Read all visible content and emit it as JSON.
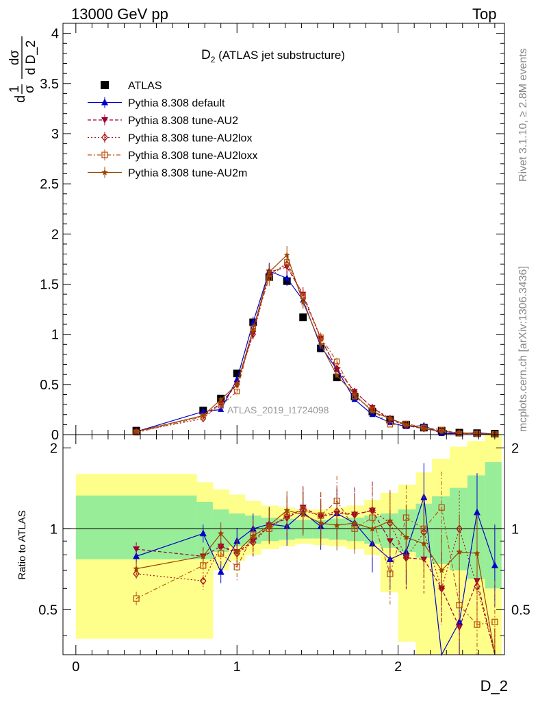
{
  "header": {
    "left": "13000 GeV pp",
    "right": "Top"
  },
  "side_labels": {
    "rivet": "Rivet 3.1.10, ≥ 2.8M events",
    "mcplots": "mcplots.cern.ch [arXiv:1306.3436]"
  },
  "chart_data": [
    {
      "type": "line",
      "title": "D₂ (ATLAS jet substructure)",
      "title_main": "D",
      "title_sub": "2",
      "title_rest": " (ATLAS jet substructure)",
      "xlabel": "D_2",
      "ylabel": "dσ / d D_2  × 1/σ",
      "ylabel_parts": {
        "frac1_num": "1",
        "frac1_den": "σ",
        "frac2_num": "dσ",
        "frac2_den": "d D_2",
        "prefix": "d"
      },
      "xlim": [
        -0.08,
        2.66
      ],
      "ylim": [
        0,
        4.1
      ],
      "x_ticks": [
        "0",
        "1",
        "2"
      ],
      "y_ticks": [
        "0",
        "0.5",
        "1",
        "1.5",
        "2",
        "2.5",
        "3",
        "3.5",
        "4"
      ],
      "watermark": "ATLAS_2019_I1724098",
      "legend_position": "top-left",
      "x": [
        0.375,
        0.79,
        0.9,
        1.0,
        1.1,
        1.2,
        1.31,
        1.41,
        1.52,
        1.62,
        1.73,
        1.84,
        1.95,
        2.05,
        2.16,
        2.27,
        2.38,
        2.49,
        2.6
      ],
      "series": [
        {
          "name": "ATLAS",
          "color": "#000000",
          "marker": "square",
          "values": [
            0.04,
            0.24,
            0.36,
            0.61,
            1.12,
            1.57,
            1.53,
            1.17,
            0.86,
            0.57,
            0.38,
            0.23,
            0.15,
            0.1,
            0.07,
            0.04,
            0.02,
            0.015,
            0.01
          ]
        },
        {
          "name": "Pythia 8.308 default",
          "color": "#0000cc",
          "marker": "triangle-up",
          "values": [
            0.03,
            0.23,
            0.25,
            0.55,
            1.12,
            1.63,
            1.56,
            1.34,
            0.88,
            0.65,
            0.35,
            0.2,
            0.12,
            0.08,
            0.09,
            0.01,
            0.01,
            0.02,
            0.005
          ]
        },
        {
          "name": "Pythia 8.308 tune-AU2",
          "color": "#990033",
          "marker": "triangle-down",
          "values": [
            0.03,
            0.19,
            0.31,
            0.5,
            1.01,
            1.62,
            1.67,
            1.4,
            0.96,
            0.65,
            0.43,
            0.27,
            0.15,
            0.09,
            0.06,
            0.03,
            0.01,
            0.01,
            0.005
          ]
        },
        {
          "name": "Pythia 8.308 tune-AU2lox",
          "color": "#aa1111",
          "marker": "diamond-open",
          "values": [
            0.03,
            0.16,
            0.31,
            0.5,
            1.0,
            1.6,
            1.7,
            1.37,
            0.96,
            0.66,
            0.43,
            0.27,
            0.16,
            0.09,
            0.06,
            0.04,
            0.015,
            0.01,
            0.005
          ]
        },
        {
          "name": "Pythia 8.308 tune-AU2loxx",
          "color": "#bb5511",
          "marker": "square-open",
          "values": [
            0.02,
            0.18,
            0.29,
            0.43,
            1.06,
            1.56,
            1.72,
            1.38,
            0.97,
            0.73,
            0.38,
            0.25,
            0.1,
            0.11,
            0.07,
            0.05,
            0.01,
            0.01,
            0.005
          ]
        },
        {
          "name": "Pythia 8.308 tune-AU2m",
          "color": "#994400",
          "marker": "star",
          "values": [
            0.03,
            0.19,
            0.35,
            0.5,
            1.05,
            1.62,
            1.79,
            1.32,
            0.9,
            0.59,
            0.4,
            0.23,
            0.16,
            0.1,
            0.06,
            0.03,
            0.02,
            0.01,
            0.005
          ]
        }
      ]
    },
    {
      "type": "line",
      "ylabel": "Ratio to ATLAS",
      "xlim": [
        -0.08,
        2.66
      ],
      "ylim": [
        0.34,
        2.24
      ],
      "x_ticks": [
        "0",
        "1",
        "2"
      ],
      "y_ticks": [
        "0.5",
        "1",
        "2"
      ],
      "reference": 1,
      "bands": {
        "edges": [
          0,
          0.75,
          0.85,
          0.95,
          1.05,
          1.15,
          1.26,
          1.36,
          1.47,
          1.57,
          1.68,
          1.79,
          1.89,
          2.0,
          2.11,
          2.21,
          2.32,
          2.43,
          2.54,
          2.64
        ],
        "inner_lo": [
          0.77,
          0.77,
          0.82,
          0.86,
          0.88,
          0.9,
          0.91,
          0.92,
          0.92,
          0.91,
          0.9,
          0.88,
          0.85,
          0.82,
          0.78,
          0.74,
          0.7,
          0.65,
          0.6
        ],
        "inner_hi": [
          1.33,
          1.26,
          1.18,
          1.14,
          1.12,
          1.1,
          1.09,
          1.08,
          1.08,
          1.09,
          1.1,
          1.12,
          1.14,
          1.18,
          1.24,
          1.32,
          1.42,
          1.58,
          1.77
        ],
        "outer_lo": [
          0.39,
          0.39,
          0.7,
          0.76,
          0.8,
          0.84,
          0.86,
          0.88,
          0.87,
          0.86,
          0.84,
          0.8,
          0.58,
          0.38,
          0.34,
          0.34,
          0.34,
          0.34,
          0.34
        ],
        "outer_hi": [
          1.6,
          1.49,
          1.4,
          1.34,
          1.27,
          1.22,
          1.2,
          1.18,
          1.18,
          1.2,
          1.22,
          1.28,
          1.36,
          1.46,
          1.62,
          1.82,
          2.02,
          2.12,
          2.3
        ],
        "inner_color": "#98ee98",
        "outer_color": "#fefe8a"
      },
      "series": [
        {
          "name": "Pythia 8.308 default",
          "color": "#0000cc",
          "values": [
            0.79,
            0.96,
            0.69,
            0.9,
            1.0,
            1.04,
            1.02,
            1.15,
            1.02,
            1.14,
            1.05,
            0.88,
            0.77,
            0.82,
            1.31,
            0.2,
            0.45,
            1.15,
            0.73
          ]
        },
        {
          "name": "Pythia 8.308 tune-AU2",
          "color": "#990033",
          "values": [
            0.84,
            0.79,
            0.86,
            0.82,
            0.9,
            1.03,
            1.09,
            1.2,
            1.11,
            1.14,
            1.13,
            1.17,
            0.9,
            0.78,
            0.77,
            0.6,
            0.43,
            0.64,
            0.3
          ]
        },
        {
          "name": "Pythia 8.308 tune-AU2lox",
          "color": "#aa1111",
          "values": [
            0.68,
            0.64,
            0.86,
            0.81,
            0.89,
            1.02,
            1.11,
            1.17,
            1.12,
            1.16,
            1.13,
            1.17,
            1.05,
            0.78,
            0.97,
            0.6,
            1.0,
            0.61,
            0.3
          ]
        },
        {
          "name": "Pythia 8.308 tune-AU2loxx",
          "color": "#bb5511",
          "values": [
            0.55,
            0.73,
            0.81,
            0.72,
            0.95,
            1.0,
            1.12,
            1.18,
            1.12,
            1.27,
            1.0,
            1.1,
            0.68,
            1.1,
            1.0,
            1.2,
            0.52,
            0.44,
            0.45
          ]
        },
        {
          "name": "Pythia 8.308 tune-AU2m",
          "color": "#994400",
          "values": [
            0.71,
            0.79,
            0.96,
            0.82,
            0.94,
            1.03,
            1.17,
            1.13,
            1.05,
            1.03,
            1.05,
            1.0,
            1.07,
            0.93,
            0.88,
            0.7,
            0.82,
            0.81,
            0.3
          ]
        }
      ]
    }
  ]
}
